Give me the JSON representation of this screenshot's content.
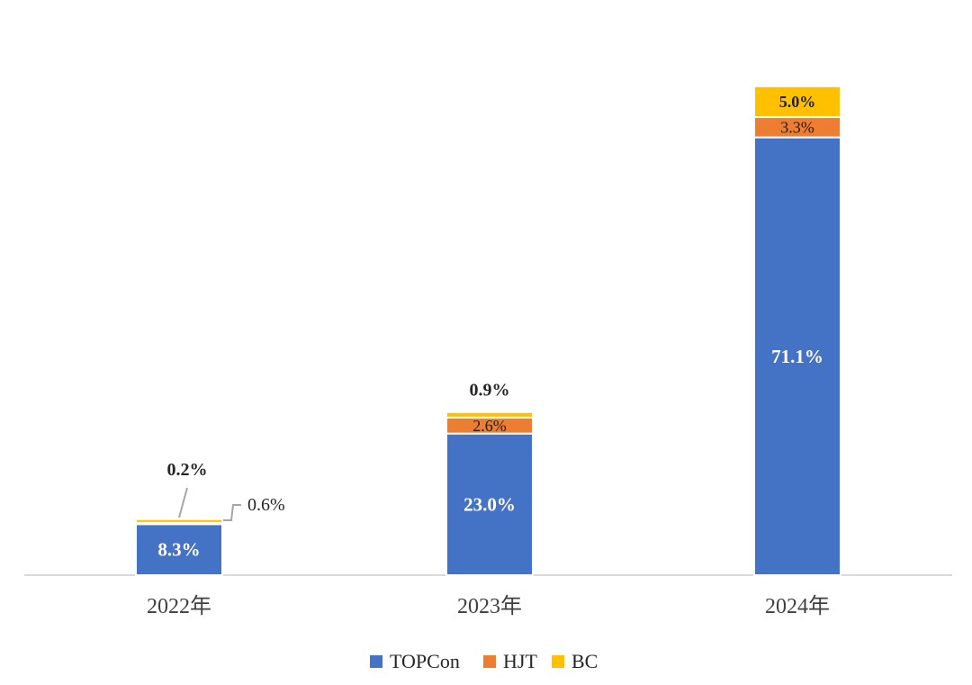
{
  "chart_data": {
    "type": "bar",
    "stacked": true,
    "categories": [
      "2022年",
      "2023年",
      "2024年"
    ],
    "series": [
      {
        "name": "TOPCon",
        "color": "#4472C4",
        "values": [
          8.3,
          23.0,
          71.1
        ],
        "labels": [
          "8.3%",
          "23.0%",
          "71.1%"
        ]
      },
      {
        "name": "HJT",
        "color": "#ED7D31",
        "values": [
          0.2,
          2.6,
          3.3
        ],
        "labels": [
          "0.2%",
          "2.6%",
          "3.3%"
        ]
      },
      {
        "name": "BC",
        "color": "#FFC000",
        "values": [
          0.6,
          0.9,
          5.0
        ],
        "labels": [
          "0.6%",
          "0.9%",
          "5.0%"
        ]
      }
    ],
    "ylim": [
      0,
      80
    ],
    "grid": false,
    "legend": "bottom"
  }
}
